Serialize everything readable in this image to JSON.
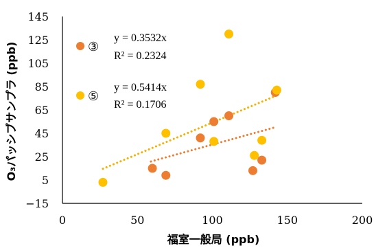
{
  "chart_data": {
    "type": "scatter",
    "xlabel": "福室一般局 (ppb)",
    "ylabel": "O₃パッシブサンプラ (ppb)",
    "xlim": [
      0,
      200
    ],
    "ylim": [
      -15,
      145
    ],
    "x_ticks": [
      "0",
      "50",
      "100",
      "150",
      "200"
    ],
    "y_ticks": [
      "−15",
      "5",
      "25",
      "45",
      "65",
      "85",
      "105",
      "125",
      "145"
    ],
    "grid": false,
    "legend_position": "top-left",
    "series": [
      {
        "name": "③",
        "color": "#ED7D31",
        "points": [
          {
            "x": 60,
            "y": 15
          },
          {
            "x": 69,
            "y": 9
          },
          {
            "x": 92,
            "y": 41
          },
          {
            "x": 101,
            "y": 55
          },
          {
            "x": 111,
            "y": 60
          },
          {
            "x": 127,
            "y": 13
          },
          {
            "x": 133,
            "y": 22
          },
          {
            "x": 142,
            "y": 80
          }
        ],
        "trendline": {
          "slope": 0.3532,
          "x_range": [
            59,
            143
          ],
          "color": "#ED7D31"
        },
        "equation": "y = 0.3532x",
        "r_squared": "R² = 0.2324"
      },
      {
        "name": "⑤",
        "color": "#FFC000",
        "points": [
          {
            "x": 27,
            "y": 3
          },
          {
            "x": 69,
            "y": 45
          },
          {
            "x": 92,
            "y": 87
          },
          {
            "x": 101,
            "y": 38
          },
          {
            "x": 111,
            "y": 130
          },
          {
            "x": 128,
            "y": 26
          },
          {
            "x": 133,
            "y": 39
          },
          {
            "x": 143,
            "y": 82
          }
        ],
        "trendline": {
          "slope": 0.5414,
          "x_range": [
            27,
            143
          ],
          "color": "#F5B000"
        },
        "equation": "y = 0.5414x",
        "r_squared": "R² = 0.1706"
      }
    ]
  }
}
